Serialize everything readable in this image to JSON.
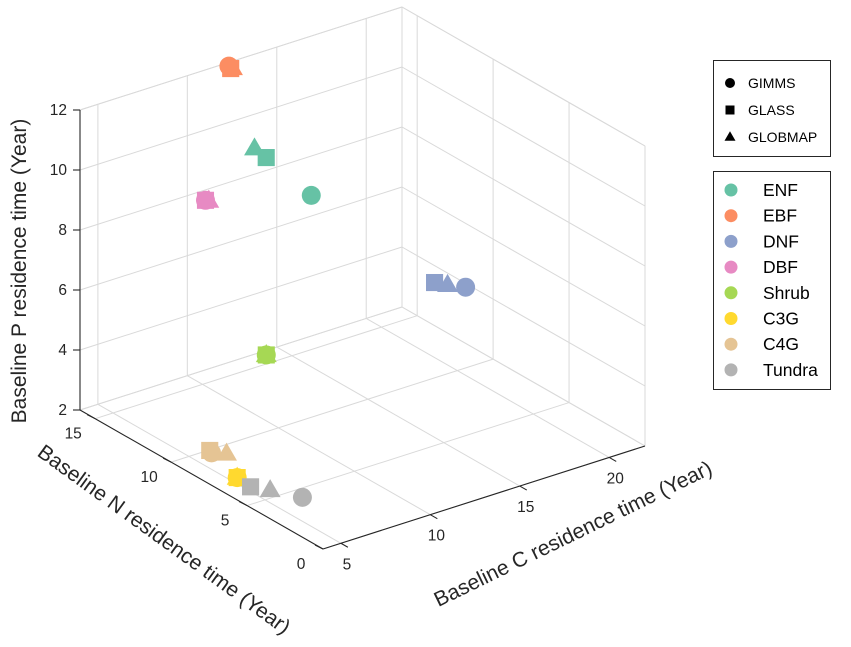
{
  "chart_data": {
    "type": "scatter3d",
    "xlabel": "Baseline C residence time (Year)",
    "ylabel": "Baseline N residence time (Year)",
    "zlabel": "Baseline P residence time (Year)",
    "xlim": [
      4,
      22
    ],
    "ylim": [
      0,
      16
    ],
    "zlim": [
      2,
      12
    ],
    "xticks": [
      5,
      10,
      15,
      20
    ],
    "yticks": [
      0,
      5,
      10,
      15
    ],
    "zticks": [
      2,
      4,
      6,
      8,
      10,
      12
    ],
    "grid": true,
    "product_legend": [
      {
        "name": "GIMMS",
        "marker": "circle"
      },
      {
        "name": "GLASS",
        "marker": "square"
      },
      {
        "name": "GLOBMAP",
        "marker": "triangle"
      }
    ],
    "pft_legend": [
      {
        "name": "ENF",
        "color": "#66c2a5"
      },
      {
        "name": "EBF",
        "color": "#fc8d62"
      },
      {
        "name": "DNF",
        "color": "#8da0cb"
      },
      {
        "name": "DBF",
        "color": "#e78ac3"
      },
      {
        "name": "Shrub",
        "color": "#a6d854"
      },
      {
        "name": "C3G",
        "color": "#ffd92f"
      },
      {
        "name": "C4G",
        "color": "#e5c494"
      },
      {
        "name": "Tundra",
        "color": "#b3b3b3"
      }
    ],
    "points": [
      {
        "pft": "ENF",
        "product": "GIMMS",
        "x": 15.4,
        "y": 14.2,
        "z": 7.5
      },
      {
        "pft": "ENF",
        "product": "GLASS",
        "x": 13.9,
        "y": 15.4,
        "z": 8.7
      },
      {
        "pft": "ENF",
        "product": "GLOBMAP",
        "x": 13.5,
        "y": 15.7,
        "z": 9.0
      },
      {
        "pft": "EBF",
        "product": "GIMMS",
        "x": 11.9,
        "y": 15.5,
        "z": 12.1
      },
      {
        "pft": "EBF",
        "product": "GLASS",
        "x": 12.0,
        "y": 15.5,
        "z": 12.0
      },
      {
        "pft": "EBF",
        "product": "GLOBMAP",
        "x": 12.1,
        "y": 15.5,
        "z": 12.0
      },
      {
        "pft": "DNF",
        "product": "GIMMS",
        "x": 18.0,
        "y": 7.1,
        "z": 6.0
      },
      {
        "pft": "DNF",
        "product": "GLASS",
        "x": 20.0,
        "y": 11.5,
        "z": 4.5
      },
      {
        "pft": "DNF",
        "product": "GLOBMAP",
        "x": 17.5,
        "y": 7.7,
        "z": 6.0
      },
      {
        "pft": "DBF",
        "product": "GIMMS",
        "x": 6.6,
        "y": 10.8,
        "z": 10.0
      },
      {
        "pft": "DBF",
        "product": "GLASS",
        "x": 6.6,
        "y": 10.8,
        "z": 10.0
      },
      {
        "pft": "DBF",
        "product": "GLOBMAP",
        "x": 6.7,
        "y": 10.7,
        "z": 10.0
      },
      {
        "pft": "Shrub",
        "product": "GIMMS",
        "x": 8.3,
        "y": 8.8,
        "z": 5.1
      },
      {
        "pft": "Shrub",
        "product": "GLASS",
        "x": 8.3,
        "y": 8.8,
        "z": 5.1
      },
      {
        "pft": "Shrub",
        "product": "GLOBMAP",
        "x": 8.3,
        "y": 8.8,
        "z": 5.1
      },
      {
        "pft": "C3G",
        "product": "GIMMS",
        "x": 5.4,
        "y": 7.3,
        "z": 2.0
      },
      {
        "pft": "C3G",
        "product": "GLASS",
        "x": 5.4,
        "y": 7.3,
        "z": 2.0
      },
      {
        "pft": "C3G",
        "product": "GLOBMAP",
        "x": 5.4,
        "y": 7.3,
        "z": 2.0
      },
      {
        "pft": "C4G",
        "product": "GIMMS",
        "x": 4.9,
        "y": 8.4,
        "z": 2.6
      },
      {
        "pft": "C4G",
        "product": "GLASS",
        "x": 4.8,
        "y": 8.4,
        "z": 2.7
      },
      {
        "pft": "C4G",
        "product": "GLOBMAP",
        "x": 5.4,
        "y": 8.0,
        "z": 2.6
      },
      {
        "pft": "Tundra",
        "product": "GIMMS",
        "x": 6.5,
        "y": 4.3,
        "z": 2.0
      },
      {
        "pft": "Tundra",
        "product": "GLASS",
        "x": 5.3,
        "y": 6.3,
        "z": 2.0
      },
      {
        "pft": "Tundra",
        "product": "GLOBMAP",
        "x": 5.8,
        "y": 5.6,
        "z": 2.0
      }
    ]
  }
}
